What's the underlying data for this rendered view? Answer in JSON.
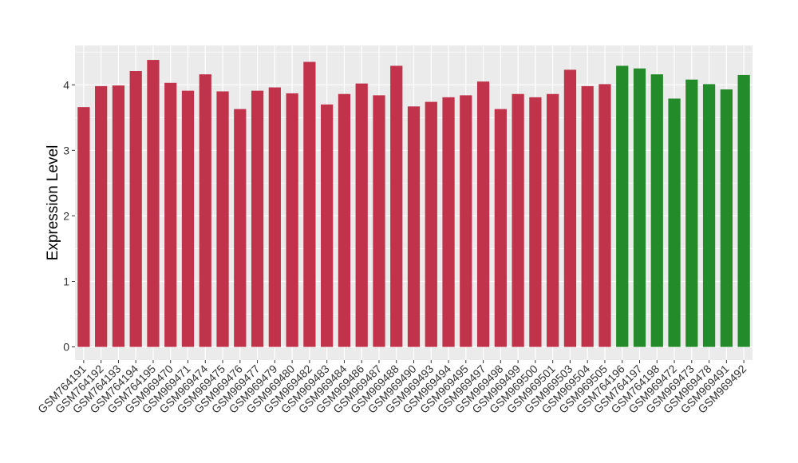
{
  "chart_data": {
    "type": "bar",
    "title": "",
    "xlabel": "",
    "ylabel": "Expression Level",
    "ylim": [
      -0.2,
      4.6
    ],
    "yticks": [
      0,
      1,
      2,
      3,
      4
    ],
    "grid": true,
    "background": "#ebebeb",
    "gridline_color": "#ffffff",
    "categories": [
      "GSM764191",
      "GSM764192",
      "GSM764193",
      "GSM764194",
      "GSM764195",
      "GSM969470",
      "GSM969471",
      "GSM969474",
      "GSM969475",
      "GSM969476",
      "GSM969477",
      "GSM969479",
      "GSM969480",
      "GSM969482",
      "GSM969483",
      "GSM969484",
      "GSM969486",
      "GSM969487",
      "GSM969488",
      "GSM969490",
      "GSM969493",
      "GSM969494",
      "GSM969495",
      "GSM969497",
      "GSM969498",
      "GSM969499",
      "GSM969500",
      "GSM969501",
      "GSM969503",
      "GSM969504",
      "GSM969505",
      "GSM764196",
      "GSM764197",
      "GSM764198",
      "GSM969472",
      "GSM969473",
      "GSM969478",
      "GSM969491",
      "GSM969492"
    ],
    "values": [
      3.66,
      3.98,
      3.99,
      4.21,
      4.38,
      4.03,
      3.91,
      4.16,
      3.9,
      3.63,
      3.91,
      3.96,
      3.87,
      4.35,
      3.7,
      3.86,
      4.02,
      3.84,
      4.29,
      3.67,
      3.74,
      3.81,
      3.84,
      4.05,
      3.63,
      3.86,
      3.81,
      3.86,
      4.23,
      3.98,
      4.01,
      4.29,
      4.25,
      4.16,
      3.79,
      4.08,
      4.01,
      3.93,
      4.15
    ],
    "bar_colors": [
      "#c0334a",
      "#c0334a",
      "#c0334a",
      "#c0334a",
      "#c0334a",
      "#c0334a",
      "#c0334a",
      "#c0334a",
      "#c0334a",
      "#c0334a",
      "#c0334a",
      "#c0334a",
      "#c0334a",
      "#c0334a",
      "#c0334a",
      "#c0334a",
      "#c0334a",
      "#c0334a",
      "#c0334a",
      "#c0334a",
      "#c0334a",
      "#c0334a",
      "#c0334a",
      "#c0334a",
      "#c0334a",
      "#c0334a",
      "#c0334a",
      "#c0334a",
      "#c0334a",
      "#c0334a",
      "#c0334a",
      "#238b2a",
      "#238b2a",
      "#238b2a",
      "#238b2a",
      "#238b2a",
      "#238b2a",
      "#238b2a",
      "#238b2a"
    ]
  }
}
